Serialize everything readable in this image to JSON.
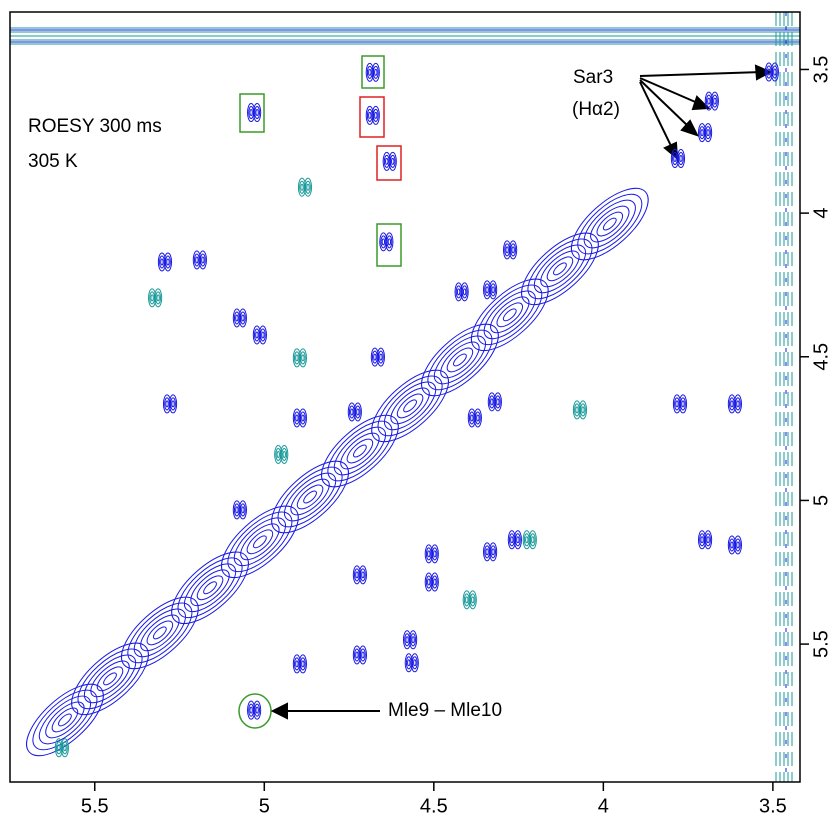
{
  "chart_data": {
    "type": "scatter",
    "xlim": [
      5.75,
      3.42
    ],
    "ylim": [
      3.3,
      5.98
    ],
    "xticks": [
      5.5,
      5.0,
      4.5,
      4.0,
      3.5
    ],
    "yticks": [
      3.5,
      4.0,
      4.5,
      5.0,
      5.5
    ],
    "annotations": [
      "ROESY 300 ms",
      "305 K",
      "Sar3",
      "(Hα2)",
      "Mle9 – Mle10"
    ],
    "series": [
      {
        "color": "#1a1ae6",
        "x": [
          5.588,
          5.455,
          5.308,
          5.16,
          5.013,
          4.865,
          4.718,
          4.57,
          4.423,
          4.276,
          4.128,
          3.981
        ],
        "y": [
          5.764,
          5.621,
          5.461,
          5.304,
          5.144,
          4.988,
          4.828,
          4.671,
          4.511,
          4.354,
          4.194,
          4.038
        ]
      },
      {
        "color": "#1a1ae6",
        "x": [
          3.503,
          3.68,
          3.7,
          3.78,
          4.68,
          5.03,
          4.64,
          4.68,
          4.63,
          5.03,
          5.278,
          5.072,
          5.013,
          5.293,
          5.19,
          4.895,
          4.733,
          4.665,
          4.418,
          4.334,
          4.275,
          4.32,
          4.379,
          4.261,
          4.334,
          4.506,
          4.506,
          3.774,
          3.612,
          3.7,
          3.612,
          5.072,
          4.57,
          4.565,
          4.718,
          4.895,
          4.718
        ],
        "y": [
          3.509,
          3.61,
          3.72,
          3.81,
          3.51,
          3.65,
          4.1,
          3.66,
          3.82,
          5.73,
          4.664,
          4.365,
          4.424,
          4.17,
          4.163,
          4.713,
          4.692,
          4.501,
          4.274,
          4.267,
          4.128,
          4.657,
          4.713,
          5.137,
          5.179,
          5.284,
          5.186,
          4.664,
          4.664,
          5.137,
          5.155,
          5.033,
          5.485,
          5.565,
          5.259,
          5.569,
          5.538
        ]
      },
      {
        "color": "#1a9a9a",
        "x": [
          5.322,
          4.895,
          4.069,
          4.217,
          5.597,
          4.394,
          4.88,
          4.95
        ],
        "y": [
          4.295,
          4.504,
          4.685,
          5.137,
          5.861,
          5.346,
          3.91,
          4.84
        ]
      }
    ]
  }
}
